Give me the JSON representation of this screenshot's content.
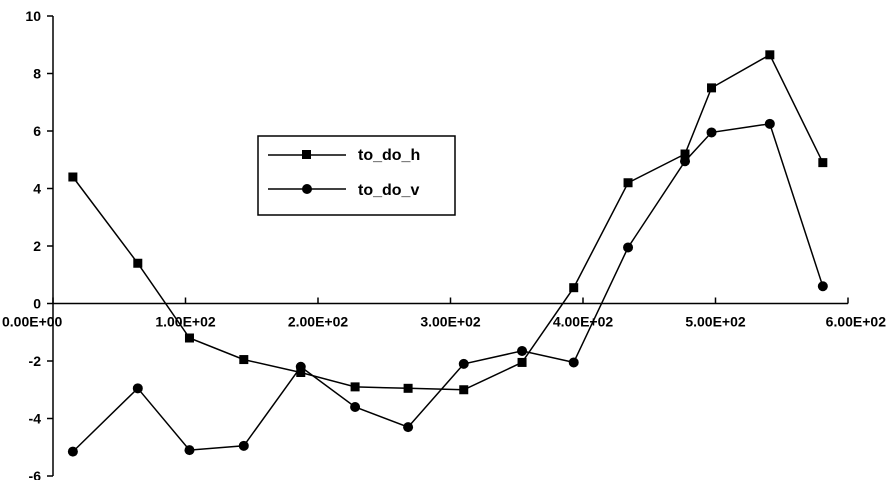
{
  "chart_data": {
    "type": "line",
    "title": "",
    "xlabel": "",
    "ylabel": "",
    "xlim": [
      0,
      600
    ],
    "ylim": [
      -6,
      10
    ],
    "x_ticks": [
      0,
      100,
      200,
      300,
      400,
      500,
      600
    ],
    "x_tick_labels": [
      "0.00E+00",
      "1.00E+02",
      "2.00E+02",
      "3.00E+02",
      "4.00E+02",
      "5.00E+02",
      "6.00E+02"
    ],
    "y_ticks": [
      -6,
      -4,
      -2,
      0,
      2,
      4,
      6,
      8,
      10
    ],
    "y_tick_labels": [
      "-6",
      "-4",
      "-2",
      "0",
      "2",
      "4",
      "6",
      "8",
      "10"
    ],
    "grid": false,
    "legend_position": "upper-center-left",
    "series": [
      {
        "name": "to_do_h",
        "marker": "square",
        "x": [
          15,
          64,
          103,
          144,
          187,
          228,
          268,
          310,
          354,
          393,
          434,
          477,
          497,
          541,
          581
        ],
        "y": [
          4.4,
          1.4,
          -1.2,
          -1.95,
          -2.4,
          -2.9,
          -2.95,
          -3.0,
          -2.05,
          0.55,
          4.2,
          5.2,
          7.5,
          8.65,
          4.9
        ]
      },
      {
        "name": "to_do_v",
        "marker": "circle",
        "x": [
          15,
          64,
          103,
          144,
          187,
          228,
          268,
          310,
          354,
          393,
          434,
          477,
          497,
          541,
          581
        ],
        "y": [
          -5.15,
          -2.95,
          -5.1,
          -4.95,
          -2.2,
          -3.6,
          -4.3,
          -2.1,
          -1.65,
          -2.05,
          1.95,
          4.95,
          5.95,
          6.25,
          0.6
        ]
      }
    ]
  }
}
